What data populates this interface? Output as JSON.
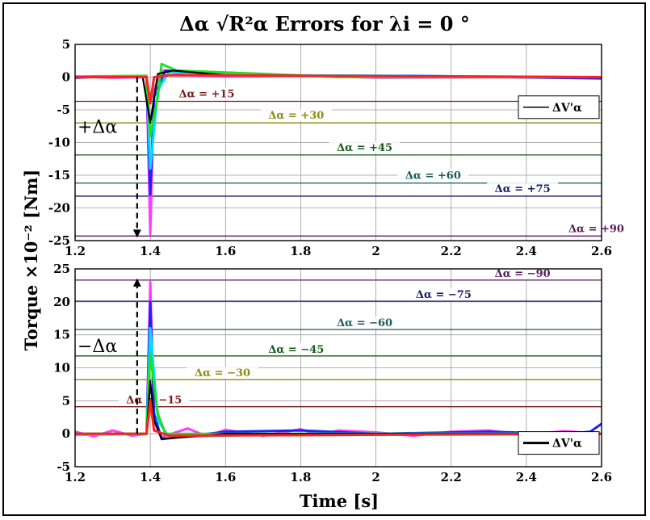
{
  "chart_data": {
    "type": "line",
    "title": "Δα √R²α Errors for λi = 0 °",
    "xlabel": "Time [s]",
    "ylabel": "Torque ×10⁻² [Nm]",
    "xlim": [
      1.2,
      2.6
    ],
    "xticks": [
      "1.2",
      "1.4",
      "1.6",
      "1.8",
      "2",
      "2.2",
      "2.4",
      "2.6"
    ],
    "grid": true,
    "legend_position": "right",
    "panels": [
      {
        "id": "top",
        "ylim": [
          -25,
          5
        ],
        "yticks": [
          "5",
          "0",
          "-5",
          "-10",
          "-15",
          "-20",
          "-25"
        ],
        "side_label": "+Δα",
        "legend": "ΔV'α",
        "thresholds": [
          {
            "label": "Δα = +15",
            "value": -3.7,
            "color": "#7a1a1a"
          },
          {
            "label": "Δα = +30",
            "value": -7.0,
            "color": "#8a8a10"
          },
          {
            "label": "Δα = +45",
            "value": -11.9,
            "color": "#1a5a1a"
          },
          {
            "label": "Δα = +60",
            "value": -16.2,
            "color": "#1a5a5a"
          },
          {
            "label": "Δα = +75",
            "value": -18.2,
            "color": "#1a1a6a"
          },
          {
            "label": "Δα = +90",
            "value": -24.3,
            "color": "#5a1a5a"
          }
        ],
        "series": [
          {
            "color": "#ff3cff",
            "points": [
              [
                1.2,
                0.1
              ],
              [
                1.3,
                -0.1
              ],
              [
                1.39,
                0
              ],
              [
                1.4,
                -24
              ],
              [
                1.41,
                -2
              ],
              [
                1.43,
                1
              ],
              [
                1.5,
                0.3
              ],
              [
                1.6,
                0.1
              ],
              [
                1.8,
                0.2
              ],
              [
                2.0,
                -0.1
              ],
              [
                2.6,
                0
              ]
            ]
          },
          {
            "color": "#2020ff",
            "points": [
              [
                1.2,
                -0.1
              ],
              [
                1.3,
                0.1
              ],
              [
                1.39,
                0
              ],
              [
                1.4,
                -18
              ],
              [
                1.41,
                -3
              ],
              [
                1.44,
                1
              ],
              [
                1.6,
                0.3
              ],
              [
                1.9,
                0.2
              ],
              [
                2.1,
                0.2
              ],
              [
                2.6,
                -0.2
              ]
            ]
          },
          {
            "color": "#00e0ff",
            "points": [
              [
                1.2,
                0
              ],
              [
                1.39,
                0
              ],
              [
                1.4,
                -14
              ],
              [
                1.42,
                -2
              ],
              [
                1.45,
                0.8
              ],
              [
                1.7,
                0.3
              ],
              [
                2.6,
                0
              ]
            ]
          },
          {
            "color": "#20e020",
            "points": [
              [
                1.2,
                0.1
              ],
              [
                1.39,
                0.2
              ],
              [
                1.4,
                -9
              ],
              [
                1.42,
                -3
              ],
              [
                1.43,
                2
              ],
              [
                1.47,
                1
              ],
              [
                1.7,
                0.5
              ],
              [
                1.9,
                0
              ],
              [
                2.6,
                0
              ]
            ]
          },
          {
            "color": "#000000",
            "points": [
              [
                1.2,
                0
              ],
              [
                1.38,
                0
              ],
              [
                1.4,
                -7
              ],
              [
                1.42,
                0.5
              ],
              [
                1.46,
                1
              ],
              [
                1.6,
                0.3
              ],
              [
                2.6,
                0
              ]
            ]
          },
          {
            "color": "#ff2020",
            "points": [
              [
                1.2,
                0
              ],
              [
                1.39,
                0
              ],
              [
                1.4,
                -4
              ],
              [
                1.41,
                0
              ],
              [
                1.45,
                0.3
              ],
              [
                2.6,
                0
              ]
            ]
          }
        ]
      },
      {
        "id": "bottom",
        "ylim": [
          -5,
          25
        ],
        "yticks": [
          "25",
          "20",
          "15",
          "10",
          "5",
          "0",
          "-5"
        ],
        "side_label": "−Δα",
        "legend": "ΔV'α",
        "thresholds": [
          {
            "label": "Δα = −90",
            "value": 23.3,
            "color": "#5a1a5a"
          },
          {
            "label": "Δα = −75",
            "value": 20.1,
            "color": "#1a1a6a"
          },
          {
            "label": "Δα = −60",
            "value": 15.8,
            "color": "#1a5a5a"
          },
          {
            "label": "Δα = −45",
            "value": 11.8,
            "color": "#1a5a1a"
          },
          {
            "label": "Δα = −30",
            "value": 8.2,
            "color": "#8a8a10"
          },
          {
            "label": "Δα = −15",
            "value": 4.1,
            "color": "#7a1a1a"
          }
        ],
        "series": [
          {
            "color": "#ff3cff",
            "points": [
              [
                1.2,
                0.3
              ],
              [
                1.25,
                -0.4
              ],
              [
                1.3,
                0.5
              ],
              [
                1.35,
                -0.3
              ],
              [
                1.39,
                0
              ],
              [
                1.4,
                23
              ],
              [
                1.41,
                2
              ],
              [
                1.43,
                -0.5
              ],
              [
                1.5,
                0.8
              ],
              [
                1.55,
                -0.4
              ],
              [
                1.6,
                0.6
              ],
              [
                1.7,
                -0.3
              ],
              [
                1.8,
                0.7
              ],
              [
                1.85,
                -0.2
              ],
              [
                1.9,
                0.5
              ],
              [
                2.0,
                0.2
              ],
              [
                2.1,
                -0.3
              ],
              [
                2.2,
                0.3
              ],
              [
                2.3,
                0.5
              ],
              [
                2.4,
                -0.2
              ],
              [
                2.5,
                0.4
              ],
              [
                2.6,
                0
              ]
            ]
          },
          {
            "color": "#2020ff",
            "points": [
              [
                1.2,
                0
              ],
              [
                1.39,
                0
              ],
              [
                1.4,
                20
              ],
              [
                1.41,
                3
              ],
              [
                1.43,
                -0.8
              ],
              [
                1.6,
                0.3
              ],
              [
                1.8,
                0.5
              ],
              [
                2.0,
                0
              ],
              [
                2.3,
                0.3
              ],
              [
                2.5,
                0
              ],
              [
                2.57,
                0.3
              ],
              [
                2.6,
                1.5
              ]
            ]
          },
          {
            "color": "#00e0ff",
            "points": [
              [
                1.2,
                -0.2
              ],
              [
                1.39,
                0
              ],
              [
                1.4,
                16
              ],
              [
                1.42,
                2
              ],
              [
                1.45,
                -0.5
              ],
              [
                1.8,
                0
              ],
              [
                2.6,
                0
              ]
            ]
          },
          {
            "color": "#20e020",
            "points": [
              [
                1.2,
                0
              ],
              [
                1.39,
                0
              ],
              [
                1.4,
                12
              ],
              [
                1.42,
                3
              ],
              [
                1.44,
                0
              ],
              [
                2.6,
                0
              ]
            ]
          },
          {
            "color": "#000000",
            "points": [
              [
                1.2,
                0
              ],
              [
                1.39,
                0
              ],
              [
                1.4,
                8
              ],
              [
                1.41,
                2
              ],
              [
                1.43,
                -0.8
              ],
              [
                1.6,
                0
              ],
              [
                2.6,
                0
              ]
            ]
          },
          {
            "color": "#ff2020",
            "points": [
              [
                1.2,
                0
              ],
              [
                1.39,
                0
              ],
              [
                1.4,
                5
              ],
              [
                1.41,
                0.5
              ],
              [
                1.45,
                -0.3
              ],
              [
                2.6,
                0
              ]
            ]
          }
        ]
      }
    ]
  }
}
